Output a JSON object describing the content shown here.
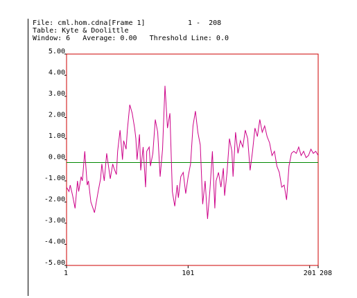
{
  "header": {
    "file_label": "File: cml.hom.cdna[Frame 1]",
    "range_label": "1 -  208",
    "table_label": "Table: Kyte & Doolittle",
    "window_label": "Window: 6",
    "average_label": "Average: 0.00",
    "threshold_label": "Threshold Line: 0.0"
  },
  "colors": {
    "frame": "#cc0000",
    "series": "#cc0088",
    "threshold": "#008800",
    "axis": "#000000"
  },
  "chart_data": {
    "type": "line",
    "title": "",
    "xlabel": "",
    "ylabel": "",
    "xlim": [
      1,
      208
    ],
    "ylim": [
      -5,
      5
    ],
    "yticks": [
      5,
      4,
      3,
      2,
      1,
      0,
      -1,
      -2,
      -3,
      -4,
      -5
    ],
    "ytick_labels": [
      "5.00",
      "4.00",
      "3.00",
      "2.00",
      "1.00",
      "0.00",
      "-1.00",
      "-2.00",
      "-3.00",
      "-4.00",
      "-5.00"
    ],
    "xticks": [
      1,
      101,
      201,
      208
    ],
    "xtick_labels": [
      "1",
      "101",
      "201",
      "208"
    ],
    "threshold": 0.0,
    "series": [
      {
        "x": [
          1,
          3,
          4,
          6,
          8,
          10,
          11,
          13,
          14,
          16,
          18,
          19,
          21,
          24,
          27,
          29,
          30,
          32,
          34,
          37,
          39,
          40,
          42,
          43,
          45,
          47,
          48,
          50,
          51,
          53,
          55,
          57,
          58,
          59,
          61,
          62,
          64,
          66,
          67,
          69,
          70,
          72,
          74,
          76,
          78,
          80,
          82,
          84,
          86,
          88,
          90,
          92,
          93,
          95,
          97,
          99,
          101,
          103,
          105,
          107,
          109,
          111,
          113,
          115,
          117,
          119,
          121,
          123,
          124,
          126,
          128,
          130,
          131,
          133,
          135,
          137,
          138,
          140,
          142,
          144,
          146,
          148,
          150,
          152,
          154,
          156,
          158,
          160,
          162,
          164,
          166,
          168,
          170,
          172,
          174,
          176,
          178,
          180,
          182,
          184,
          186,
          188,
          190,
          192,
          194,
          196,
          198,
          200,
          202,
          204,
          206,
          208
        ],
        "y": [
          -1.3,
          -1.5,
          -1.2,
          -1.7,
          -2.3,
          -1.0,
          -1.5,
          -0.8,
          -1.0,
          0.4,
          -1.2,
          -1.0,
          -2.0,
          -2.5,
          -1.5,
          -0.9,
          -0.2,
          -1.0,
          0.3,
          -0.9,
          -0.2,
          -0.4,
          -0.7,
          0.4,
          1.4,
          0.0,
          0.9,
          0.5,
          1.4,
          2.6,
          2.2,
          1.5,
          1.0,
          0.0,
          1.2,
          -0.5,
          0.6,
          -1.3,
          0.4,
          0.6,
          -0.3,
          0.3,
          1.9,
          1.3,
          -0.8,
          0.5,
          3.5,
          1.5,
          2.2,
          -1.5,
          -2.2,
          -1.2,
          -1.8,
          -0.8,
          -0.6,
          -1.6,
          -0.8,
          -0.2,
          1.6,
          2.3,
          1.3,
          0.7,
          -2.1,
          -1.0,
          -2.8,
          -1.4,
          0.4,
          -2.3,
          -1.0,
          -0.6,
          -1.3,
          -0.4,
          -1.7,
          -0.6,
          1.0,
          0.4,
          -0.8,
          1.3,
          0.3,
          0.9,
          0.6,
          1.4,
          1.0,
          -0.5,
          0.4,
          1.5,
          1.1,
          1.9,
          1.3,
          1.6,
          1.1,
          0.8,
          0.2,
          0.4,
          -0.3,
          -0.6,
          -1.3,
          -1.2,
          -1.9,
          -0.3,
          0.3,
          0.4,
          0.3,
          0.6,
          0.2,
          0.4,
          0.1,
          0.2,
          0.5,
          0.3,
          0.4,
          0.2
        ]
      }
    ]
  }
}
